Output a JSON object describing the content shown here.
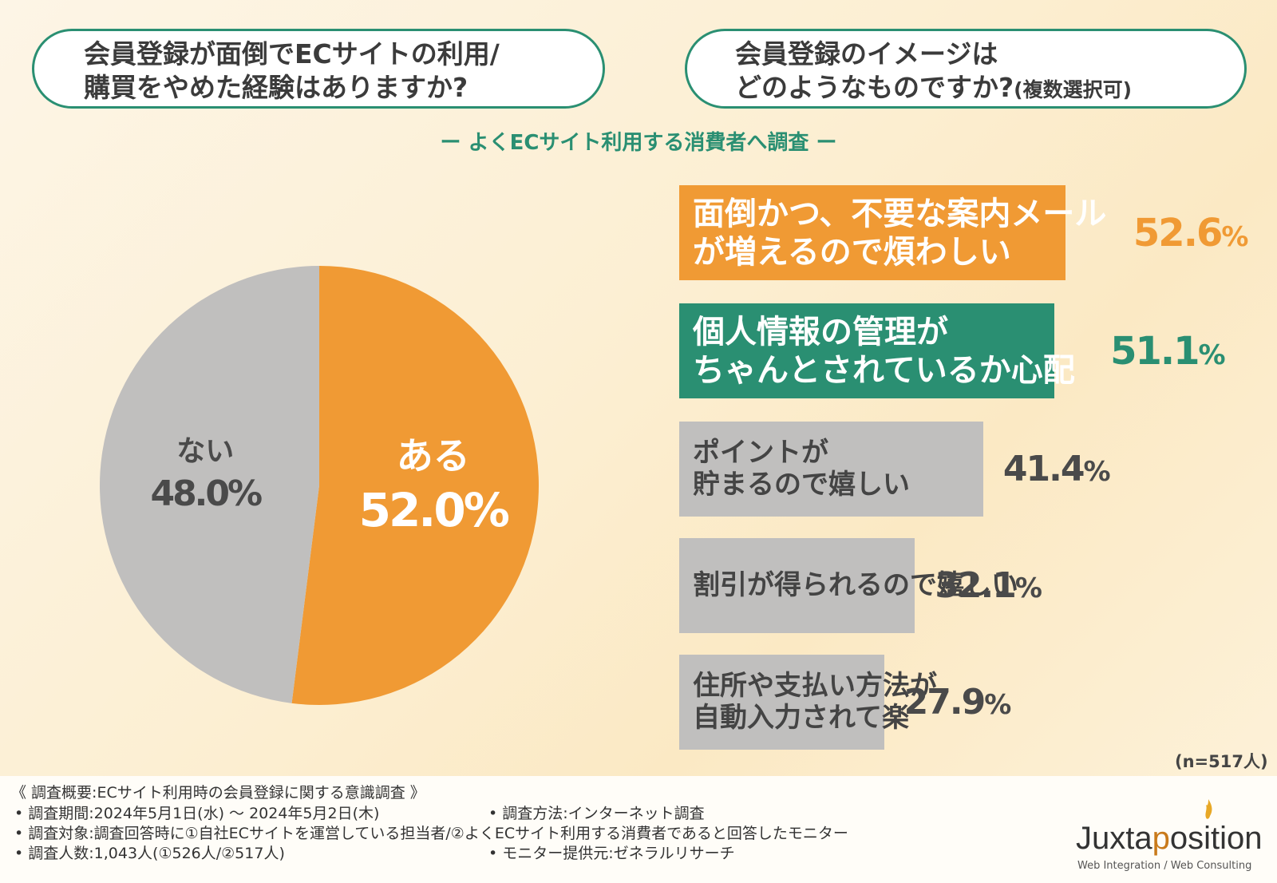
{
  "question_left": {
    "line1": "会員登録が面倒でECサイトの利用/",
    "line2": "購買をやめた経験はありますか?"
  },
  "question_right": {
    "line1": "会員登録のイメージは",
    "line2": "どのようなものですか?",
    "line2_suffix": "(複数選択可)"
  },
  "subtitle": "ー よくECサイト利用する消費者へ調査 ー",
  "colors": {
    "orange": "#f09a34",
    "green": "#2a8f72",
    "gray": "#c0bfbe"
  },
  "chart_data": [
    {
      "type": "pie",
      "slices": [
        {
          "label": "ある",
          "value": 52.0,
          "display": "52.0%",
          "color": "#f09a34"
        },
        {
          "label": "ない",
          "value": 48.0,
          "display": "48.0%",
          "color": "#c0bfbe"
        }
      ]
    },
    {
      "type": "bar",
      "orientation": "horizontal",
      "categories": [
        "面倒かつ、不要な案内メールが増えるので煩わしい",
        "個人情報の管理がちゃんとされているか心配",
        "ポイントが貯まるので嬉しい",
        "割引が得られるので嬉しい",
        "住所や支払い方法が自動入力されて楽"
      ],
      "category_lines": [
        [
          "面倒かつ、不要な案内メール",
          "が増えるので煩わしい"
        ],
        [
          "個人情報の管理が",
          "ちゃんとされているか心配"
        ],
        [
          "ポイントが",
          "貯まるので嬉しい"
        ],
        [
          "割引が得られるので嬉しい"
        ],
        [
          "住所や支払い方法が",
          "自動入力されて楽"
        ]
      ],
      "values": [
        52.6,
        51.1,
        41.4,
        32.1,
        27.9
      ],
      "value_labels": [
        "52.6",
        "51.1",
        "41.4",
        "32.1",
        "27.9"
      ],
      "unit": "%",
      "bar_colors": [
        "#f09a34",
        "#2a8f72",
        "#c0bfbe",
        "#c0bfbe",
        "#c0bfbe"
      ],
      "note": "(n=517人)"
    }
  ],
  "footer": {
    "summary": "《 調査概要:ECサイト利用時の会員登録に関する意識調査 》",
    "period": "• 調査期間:2024年5月1日(水) 〜 2024年5月2日(木)",
    "method": "• 調査方法:インターネット調査",
    "target": "• 調査対象:調査回答時に①自社ECサイトを運営している担当者/②よくECサイト利用する消費者であると回答したモニター",
    "count": "• 調査人数:1,043人(①526人/②517人)",
    "provider": "• モニター提供元:ゼネラルリサーチ"
  },
  "logo": {
    "pre": "Juxta",
    "highlight": "p",
    "post": "osition",
    "tagline": "Web Integration / Web Consulting"
  }
}
